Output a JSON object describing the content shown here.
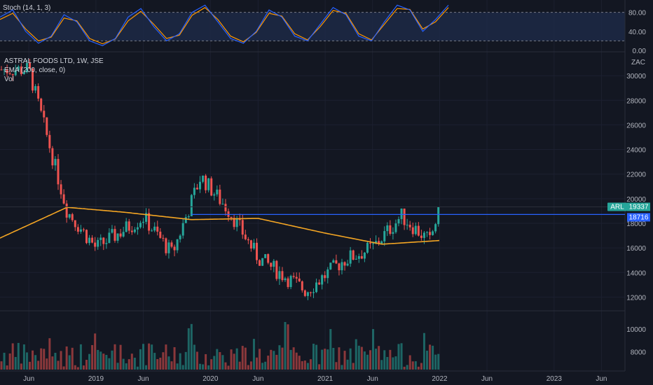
{
  "header": {
    "stoch_label": "Stoch (14, 1, 3)",
    "title": "ASTRAL FOODS LTD, 1W, JSE",
    "ema_label": "EMA (200, close, 0)",
    "vol_label": "Vol",
    "currency": "ZAC"
  },
  "badges": {
    "symbol": "ARL",
    "price": "19337",
    "level": "18716"
  },
  "colors": {
    "background": "#131722",
    "up": "#26a69a",
    "down": "#ef5350",
    "ema": "#f5a623",
    "hline": "#2962ff",
    "stoch_k": "#2962ff",
    "stoch_d": "#ff9800",
    "stoch_band": "#1e2a48",
    "axis_text": "#b2b5be"
  },
  "chart_data": [
    {
      "type": "candlestick",
      "title": "ASTRAL FOODS LTD, 1W, JSE",
      "price_axis_ticks": [
        30000,
        28000,
        26000,
        24000,
        22000,
        20000,
        18000,
        16000,
        14000,
        12000
      ],
      "price_range": [
        11000,
        31600
      ],
      "time_labels": [
        "Jun",
        "2019",
        "Jun",
        "2020",
        "Jun",
        "2021",
        "Jun",
        "2022",
        "Jun",
        "2023",
        "Jun"
      ],
      "ema_label": "EMA (200, close, 0)",
      "horizontal_line": 18716,
      "last_close": 19337,
      "key_points": [
        {
          "x": "2018-06",
          "y": 30500
        },
        {
          "x": "2018-10",
          "y": 19000
        },
        {
          "x": "2019-01",
          "y": 16000
        },
        {
          "x": "2019-06",
          "y": 18500
        },
        {
          "x": "2019-09",
          "y": 15500
        },
        {
          "x": "2019-12",
          "y": 21800
        },
        {
          "x": "2020-03",
          "y": 19000
        },
        {
          "x": "2020-06",
          "y": 15200
        },
        {
          "x": "2020-11",
          "y": 12500
        },
        {
          "x": "2021-03",
          "y": 15000
        },
        {
          "x": "2021-06",
          "y": 16000
        },
        {
          "x": "2021-09",
          "y": 18600
        },
        {
          "x": "2021-12",
          "y": 16500
        },
        {
          "x": "2022-01",
          "y": 19337
        }
      ],
      "ema_points": [
        {
          "x": "2018-03",
          "y": 16800
        },
        {
          "x": "2018-10",
          "y": 19300
        },
        {
          "x": "2019-04",
          "y": 18900
        },
        {
          "x": "2019-11",
          "y": 18300
        },
        {
          "x": "2020-06",
          "y": 18400
        },
        {
          "x": "2021-01",
          "y": 17200
        },
        {
          "x": "2021-07",
          "y": 16300
        },
        {
          "x": "2022-01",
          "y": 16600
        }
      ]
    },
    {
      "type": "line",
      "title": "Stoch (14, 1, 3)",
      "y_ticks": [
        80,
        40,
        0
      ],
      "y_range": [
        0,
        100
      ],
      "band": [
        20,
        80
      ],
      "series": [
        {
          "values": [
            70,
            85,
            40,
            15,
            30,
            75,
            60,
            20,
            10,
            25,
            70,
            88,
            50,
            20,
            35,
            80,
            95,
            60,
            25,
            15,
            40,
            85,
            70,
            30,
            20,
            55,
            90,
            75,
            30,
            20,
            60,
            95,
            85,
            40,
            65,
            95
          ]
        },
        {
          "values": [
            65,
            78,
            45,
            20,
            28,
            68,
            62,
            25,
            14,
            24,
            62,
            82,
            55,
            25,
            32,
            74,
            90,
            65,
            30,
            18,
            38,
            78,
            72,
            35,
            22,
            50,
            84,
            78,
            35,
            22,
            55,
            88,
            86,
            45,
            60,
            90
          ]
        }
      ]
    },
    {
      "type": "bar",
      "title": "Vol",
      "y_ticks": [
        10000,
        8000
      ],
      "y_range": [
        6400,
        11500
      ]
    }
  ]
}
